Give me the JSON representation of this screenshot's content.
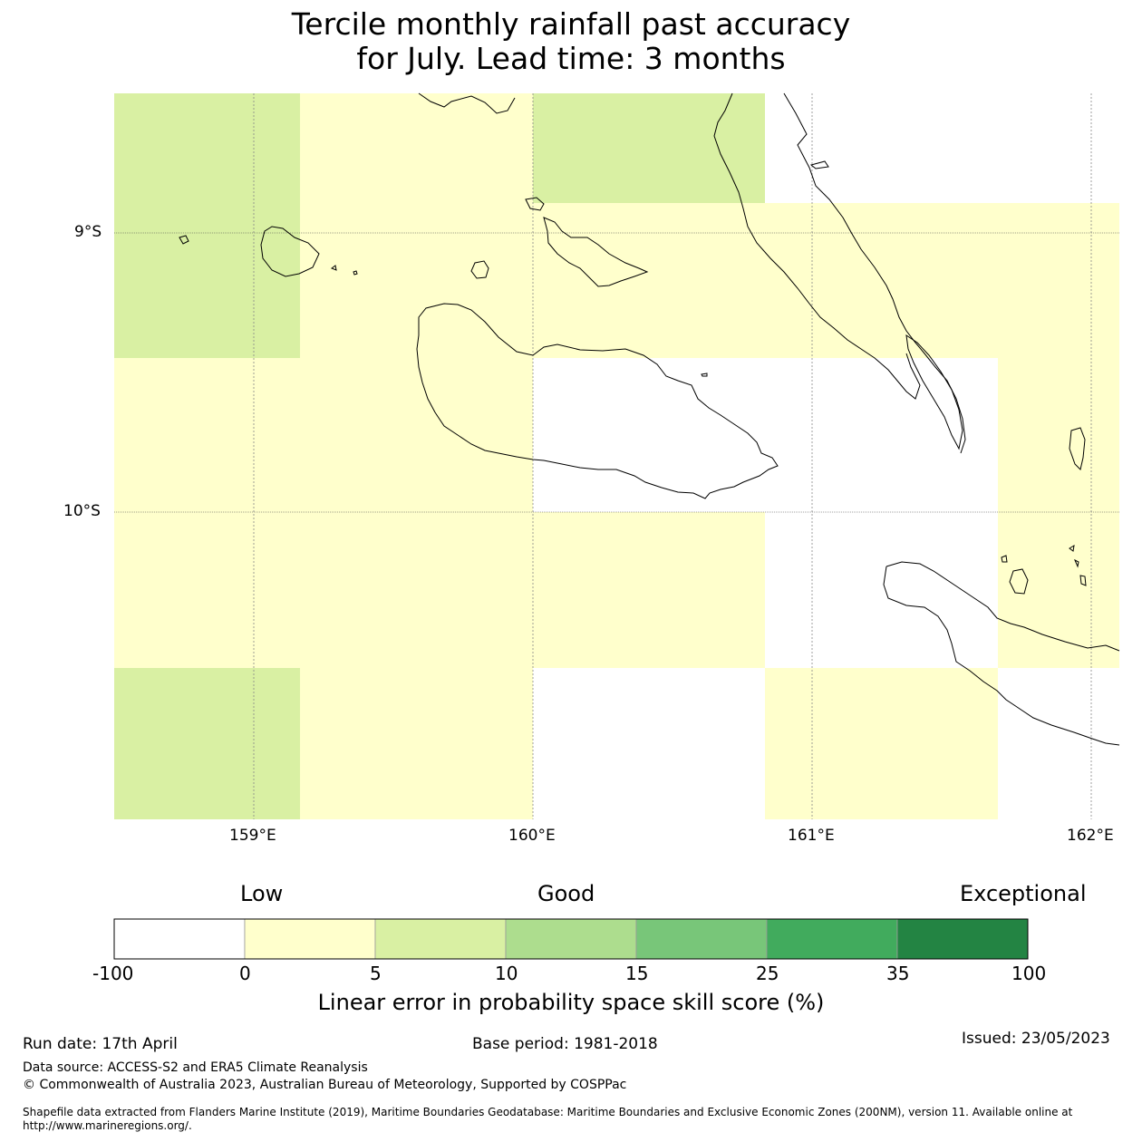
{
  "title_line1": "Tercile monthly rainfall past accuracy",
  "title_line2": "for July. Lead time: 3 months",
  "map": {
    "lat_labels": [
      "9°S",
      "10°S"
    ],
    "lon_labels": [
      "159°E",
      "160°E",
      "161°E",
      "162°E"
    ],
    "colors": {
      "low": "#ffffcc",
      "good": "#d9f0a3",
      "none": "#ffffff",
      "coast": "#000000",
      "grid": "#888888"
    }
  },
  "legend": {
    "categories": [
      "Low",
      "Good",
      "Exceptional"
    ],
    "ticks": [
      "-100",
      "0",
      "5",
      "10",
      "15",
      "25",
      "35",
      "100"
    ],
    "colors": [
      "#ffffff",
      "#ffffcc",
      "#d9f0a3",
      "#addd8e",
      "#78c679",
      "#41ab5d",
      "#238443"
    ],
    "title": "Linear error in probability space skill score (%)"
  },
  "footer": {
    "run_date": "Run date: 17th April",
    "base_period": "Base period: 1981-2018",
    "issued": "Issued: 23/05/2023",
    "data_source": "Data source: ACCESS-S2 and ERA5 Climate Reanalysis",
    "copyright": "© Commonwealth of Australia 2023, Australian Bureau of Meteorology, Supported by COSPPac",
    "shapefile": "Shapefile data extracted from Flanders Marine Institute (2019), Maritime Boundaries Geodatabase: Maritime Boundaries and Exclusive Economic Zones (200NM), version 11. Available online at http://www.marineregions.org/."
  }
}
